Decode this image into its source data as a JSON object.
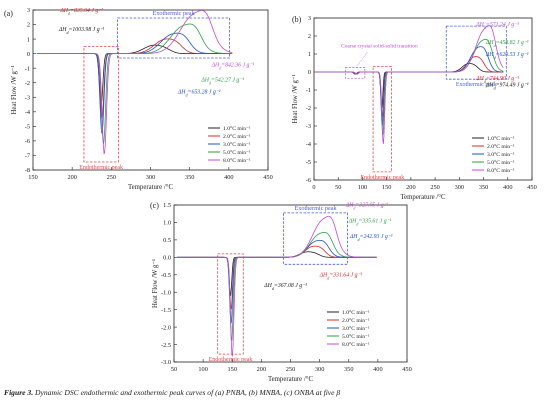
{
  "figure": {
    "caption_label": "Figure 3.",
    "caption_text": " Dynamic DSC endothermic and exothermic peak curves of (a) PNBA, (b) MNBA, (c) ONBA at five β"
  },
  "colors": {
    "black": "#222222",
    "red": "#e0262d",
    "blue": "#1f4fd6",
    "green": "#2ea043",
    "violet": "#c04bd6",
    "box_red": "#e24a4a",
    "box_blue": "#4a5be6"
  },
  "legend_labels": [
    "1.0°C min⁻¹",
    "2.0°C min⁻¹",
    "3.0°C min⁻¹",
    "5.0°C min⁻¹",
    "8.0°C min⁻¹"
  ],
  "chart_data": [
    {
      "panel": "(a)",
      "type": "line",
      "xlabel": "Temperature /°C",
      "ylabel": "Heat Flow /W g⁻¹",
      "xlim": [
        150,
        450
      ],
      "ylim": [
        -8,
        3
      ],
      "xticks": [
        150,
        200,
        250,
        300,
        350,
        400,
        450
      ],
      "yticks": [
        -8,
        -7,
        -6,
        -5,
        -4,
        -3,
        -2,
        -1,
        0,
        1,
        2,
        3
      ],
      "endo_label": "Endothermic peak",
      "exo_label": "Exothermic peak",
      "annotations": [
        {
          "text": "ΔH_d=835.04 J g⁻¹",
          "color": "red"
        },
        {
          "text": "ΔH_d=1003.98 J g⁻¹",
          "color": "black"
        },
        {
          "text": "ΔH_d=842.36 J g⁻¹",
          "color": "violet"
        },
        {
          "text": "ΔH_d=542.27 J g⁻¹",
          "color": "green"
        },
        {
          "text": "ΔH_d=653.28 J g⁻¹",
          "color": "blue"
        }
      ],
      "series": [
        {
          "name": "1.0°C min⁻¹",
          "color": "black",
          "endo_peak": [
            237,
            -3.5
          ],
          "exo_peak": [
            303,
            0.55
          ]
        },
        {
          "name": "2.0°C min⁻¹",
          "color": "red",
          "endo_peak": [
            238,
            -4.5
          ],
          "exo_peak": [
            318,
            0.95
          ]
        },
        {
          "name": "3.0°C min⁻¹",
          "color": "blue",
          "endo_peak": [
            238,
            -5.5
          ],
          "exo_peak": [
            328,
            1.3
          ]
        },
        {
          "name": "5.0°C min⁻¹",
          "color": "green",
          "endo_peak": [
            240,
            -6.2
          ],
          "exo_peak": [
            342,
            1.85
          ]
        },
        {
          "name": "8.0°C min⁻¹",
          "color": "violet",
          "endo_peak": [
            241,
            -6.9
          ],
          "exo_peak": [
            356,
            2.65
          ]
        }
      ]
    },
    {
      "panel": "(b)",
      "type": "line",
      "xlabel": "Temperature /°C",
      "ylabel": "Heat Flow /W g⁻¹",
      "xlim": [
        0,
        450
      ],
      "ylim": [
        -6,
        3
      ],
      "xticks": [
        0,
        50,
        100,
        150,
        200,
        250,
        300,
        350,
        400,
        450
      ],
      "yticks": [
        -6,
        -5,
        -4,
        -3,
        -2,
        -1,
        0,
        1,
        2,
        3
      ],
      "endo_label": "Endothermic peak",
      "exo_label": "Exothermic peak",
      "transition_label": "Coarse crystal solid-solid transition",
      "annotations": [
        {
          "text": "ΔH_d=571.24 J g⁻¹",
          "color": "violet"
        },
        {
          "text": "ΔH_d=458.82 J g⁻¹",
          "color": "green"
        },
        {
          "text": "ΔH_d=620.53 J g⁻¹",
          "color": "blue"
        },
        {
          "text": "ΔH_d=744.90 J g⁻¹",
          "color": "red"
        },
        {
          "text": "ΔH_d=974.49 J g⁻¹",
          "color": "black"
        }
      ],
      "series": [
        {
          "name": "1.0°C min⁻¹",
          "color": "black",
          "endo_peak": [
            140,
            -2.0
          ],
          "exo_peak": [
            318,
            0.45
          ]
        },
        {
          "name": "2.0°C min⁻¹",
          "color": "red",
          "endo_peak": [
            141,
            -2.5
          ],
          "exo_peak": [
            330,
            0.8
          ]
        },
        {
          "name": "3.0°C min⁻¹",
          "color": "blue",
          "endo_peak": [
            141,
            -3.0
          ],
          "exo_peak": [
            338,
            1.3
          ]
        },
        {
          "name": "5.0°C min⁻¹",
          "color": "green",
          "endo_peak": [
            142,
            -3.5
          ],
          "exo_peak": [
            346,
            1.65
          ]
        },
        {
          "name": "8.0°C min⁻¹",
          "color": "violet",
          "endo_peak": [
            143,
            -4.0
          ],
          "exo_peak": [
            352,
            2.3
          ]
        }
      ]
    },
    {
      "panel": "(c)",
      "type": "line",
      "xlabel": "Temperature /°C",
      "ylabel": "Heat Flow /W g⁻¹",
      "xlim": [
        50,
        450
      ],
      "ylim": [
        -3,
        1.5
      ],
      "xticks": [
        50,
        100,
        150,
        200,
        250,
        300,
        350,
        400,
        450
      ],
      "yticks": [
        -3.0,
        -2.5,
        -2.0,
        -1.5,
        -1.0,
        -0.5,
        0.0,
        0.5,
        1.0,
        1.5
      ],
      "endo_label": "Endothermic peak",
      "exo_label": "Exothermic peak",
      "annotations": [
        {
          "text": "ΔH_d=327.05 J g⁻¹",
          "color": "violet"
        },
        {
          "text": "ΔH_d=335.61 J g⁻¹",
          "color": "green"
        },
        {
          "text": "ΔH_d=242.93 J g⁻¹",
          "color": "blue"
        },
        {
          "text": "ΔH_d=331.64 J g⁻¹",
          "color": "red"
        },
        {
          "text": "ΔH_d=367.08 J g⁻¹",
          "color": "black"
        }
      ],
      "series": [
        {
          "name": "1.0°C min⁻¹",
          "color": "black",
          "endo_peak": [
            147,
            -1.1
          ],
          "exo_peak": [
            278,
            0.15
          ]
        },
        {
          "name": "2.0°C min⁻¹",
          "color": "red",
          "endo_peak": [
            148,
            -1.5
          ],
          "exo_peak": [
            288,
            0.3
          ]
        },
        {
          "name": "3.0°C min⁻¹",
          "color": "blue",
          "endo_peak": [
            148,
            -1.9
          ],
          "exo_peak": [
            294,
            0.45
          ]
        },
        {
          "name": "5.0°C min⁻¹",
          "color": "green",
          "endo_peak": [
            149,
            -2.4
          ],
          "exo_peak": [
            300,
            0.65
          ]
        },
        {
          "name": "8.0°C min⁻¹",
          "color": "violet",
          "endo_peak": [
            150,
            -2.85
          ],
          "exo_peak": [
            306,
            1.05
          ]
        }
      ]
    }
  ]
}
